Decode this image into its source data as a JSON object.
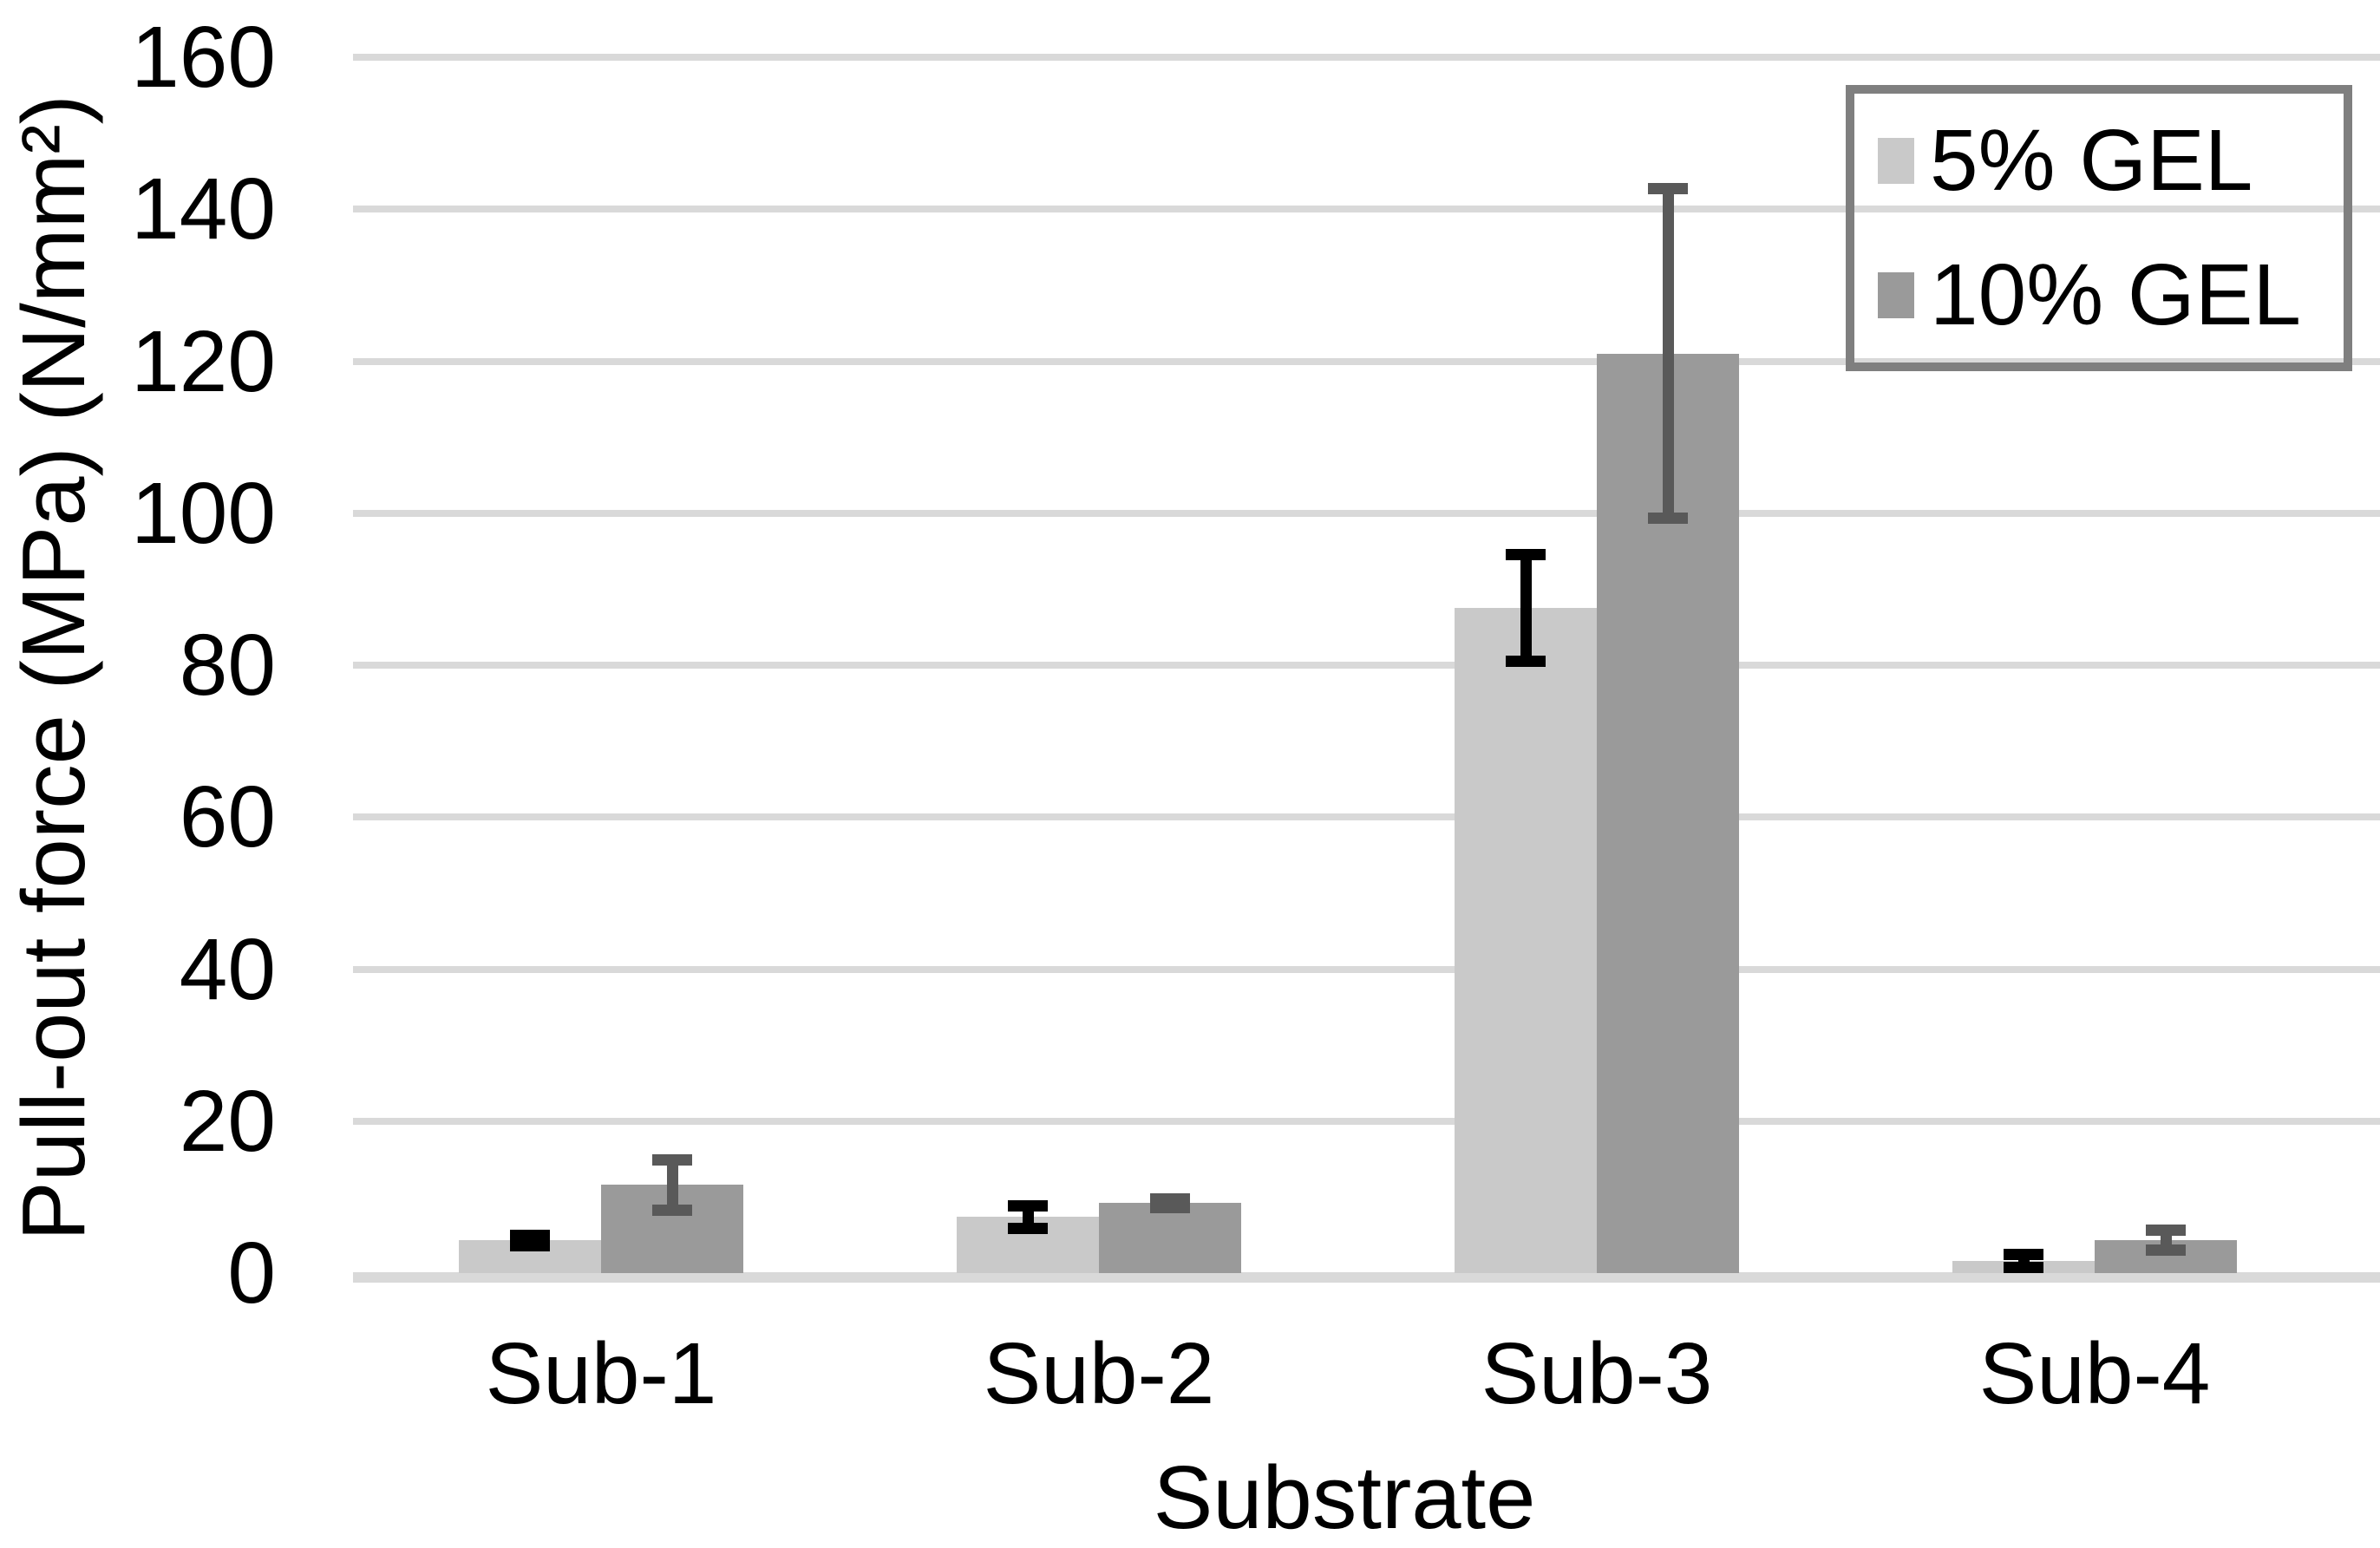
{
  "chart_data": {
    "type": "bar",
    "title": "",
    "categories": [
      "Sub-1",
      "Sub-2",
      "Sub-3",
      "Sub-4"
    ],
    "series": [
      {
        "name": "5% GEL",
        "color": "#c9c9c9",
        "error_color": "#000000",
        "values": [
          4.3,
          7.4,
          87.5,
          1.6
        ],
        "errors": [
          0.7,
          1.5,
          7.0,
          0.9
        ]
      },
      {
        "name": "10% GEL",
        "color": "#9a9a9a",
        "error_color": "#595959",
        "values": [
          11.6,
          9.2,
          121.0,
          4.3
        ],
        "errors": [
          3.3,
          0.6,
          21.7,
          1.3
        ]
      }
    ],
    "xlabel": "Substrate",
    "ylabel": "Pull-out force (MPa) (N/mm²)",
    "ylim": [
      0,
      160
    ],
    "yticks": [
      0,
      20,
      40,
      60,
      80,
      100,
      120,
      140,
      160
    ],
    "grid": true,
    "gridline_color": "#d9d9d9",
    "axis_line_color": "#d9d9d9",
    "text_color": "#000000",
    "legend": {
      "position": "top-right",
      "border_color": "#7f7f7f",
      "background": "transparent"
    }
  }
}
